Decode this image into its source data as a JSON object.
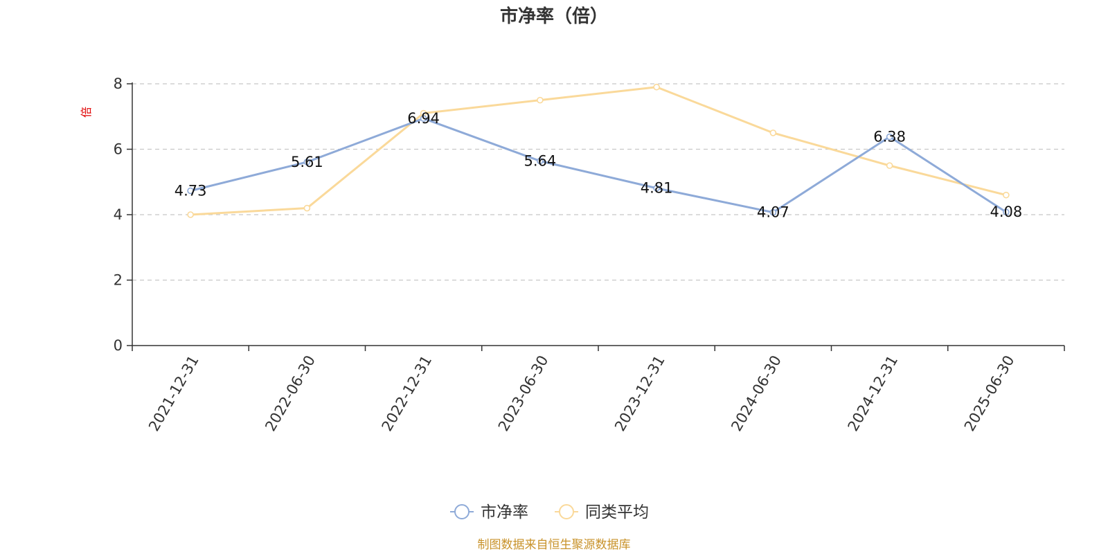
{
  "chart_data": {
    "type": "line",
    "title": "市净率（倍）",
    "ylabel": "倍",
    "xlabel": "",
    "categories": [
      "2021-12-31",
      "2022-06-30",
      "2022-12-31",
      "2023-06-30",
      "2023-12-31",
      "2024-06-30",
      "2024-12-31",
      "2025-06-30"
    ],
    "ylim": [
      0,
      8
    ],
    "yticks": [
      "0",
      "2",
      "4",
      "6",
      "8"
    ],
    "grid": true,
    "legend_position": "bottom-center",
    "series": [
      {
        "name": "市净率",
        "color": "#8eaad8",
        "values": [
          4.73,
          5.61,
          6.94,
          5.64,
          4.81,
          4.07,
          6.38,
          4.08
        ],
        "labels": [
          "4.73",
          "5.61",
          "6.94",
          "5.64",
          "4.81",
          "4.07",
          "6.38",
          "4.08"
        ]
      },
      {
        "name": "同类平均",
        "color": "#fad99a",
        "values": [
          4.0,
          4.2,
          7.1,
          7.5,
          7.9,
          6.5,
          5.5,
          4.6
        ]
      }
    ]
  },
  "source": {
    "text": "制图数据来自恒生聚源数据库",
    "color": "#c8922a"
  }
}
